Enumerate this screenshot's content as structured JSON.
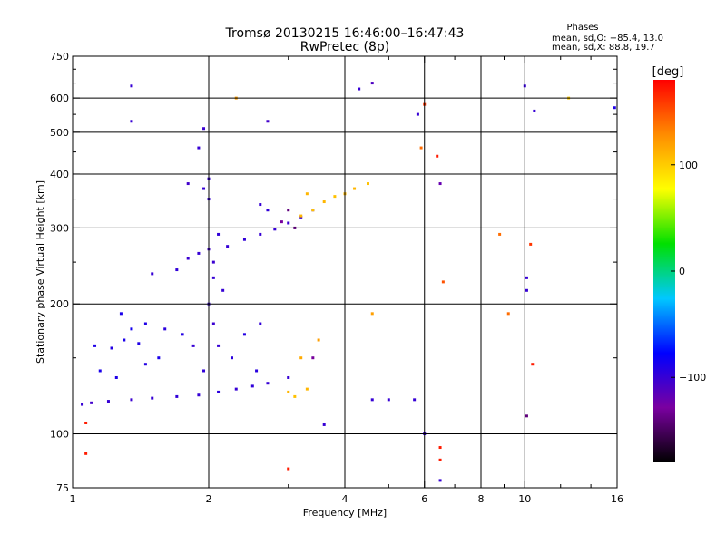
{
  "chart_data": {
    "type": "scatter",
    "title": "Tromsø 20130215 16:46:00–16:47:43",
    "subtitle": "RwPretec (8p)",
    "xlabel": "Frequency [MHz]",
    "ylabel": "Stationary phase Virtual Height [km]",
    "x_scale": "log",
    "y_scale": "log",
    "xlim": [
      1,
      16
    ],
    "ylim": [
      75,
      750
    ],
    "grid": true,
    "x_ticks": [
      1,
      2,
      4,
      6,
      8,
      10,
      16
    ],
    "x_tick_labels": [
      "1",
      "2",
      "4",
      "6",
      "8",
      "10",
      "16"
    ],
    "y_ticks": [
      75,
      100,
      200,
      300,
      400,
      500,
      600,
      750
    ],
    "y_tick_labels": [
      "75",
      "100",
      "200",
      "300",
      "400",
      "500",
      "600",
      "750"
    ],
    "x_minor_ticks": [
      3,
      5,
      7,
      9,
      12,
      14
    ],
    "y_minor_ticks": [
      150,
      250,
      350,
      450,
      550,
      650,
      700
    ],
    "stats": {
      "heading": "Phases",
      "line_o": "mean, sd,O: −85.4, 13.0",
      "line_x": "mean, sd,X:  88.8, 19.7"
    },
    "colorbar": {
      "label": "[deg]",
      "range": [
        -180,
        180
      ],
      "ticks": [
        100,
        0,
        -100
      ],
      "tick_labels": [
        "100",
        "0",
        "−100"
      ],
      "stops": [
        "#000000",
        "#7a00a0",
        "#0000ff",
        "#00c8ff",
        "#00e000",
        "#ffff00",
        "#ff8c00",
        "#ff0000"
      ]
    },
    "series": [
      {
        "points": [
          [
            1.05,
            117,
            -100
          ],
          [
            1.1,
            118,
            -105
          ],
          [
            1.2,
            119,
            -100
          ],
          [
            1.35,
            120,
            -102
          ],
          [
            1.5,
            121,
            -100
          ],
          [
            1.7,
            122,
            -98
          ],
          [
            1.9,
            123,
            -100
          ],
          [
            2.1,
            125,
            -95
          ],
          [
            2.3,
            127,
            -100
          ],
          [
            2.5,
            129,
            -97
          ],
          [
            2.7,
            131,
            -100
          ],
          [
            1.12,
            160,
            -90
          ],
          [
            1.22,
            158,
            -92
          ],
          [
            1.3,
            165,
            -88
          ],
          [
            1.4,
            162,
            -90
          ],
          [
            1.15,
            140,
            -88
          ],
          [
            1.25,
            135,
            -90
          ],
          [
            1.45,
            145,
            -92
          ],
          [
            1.55,
            150,
            -88
          ],
          [
            1.6,
            175,
            -95
          ],
          [
            1.75,
            170,
            -92
          ],
          [
            1.85,
            160,
            -100
          ],
          [
            1.95,
            140,
            -98
          ],
          [
            2.0,
            200,
            -100
          ],
          [
            2.05,
            180,
            -102
          ],
          [
            2.1,
            160,
            -100
          ],
          [
            2.15,
            215,
            -100
          ],
          [
            2.25,
            150,
            -95
          ],
          [
            2.4,
            170,
            -92
          ],
          [
            2.55,
            140,
            -94
          ],
          [
            2.6,
            180,
            -98
          ],
          [
            1.45,
            180,
            -90
          ],
          [
            1.35,
            175,
            -85
          ],
          [
            1.28,
            190,
            -88
          ],
          [
            1.5,
            235,
            -100
          ],
          [
            1.7,
            240,
            -98
          ],
          [
            1.8,
            255,
            -102
          ],
          [
            1.9,
            262,
            -100
          ],
          [
            2.0,
            268,
            -105
          ],
          [
            2.2,
            272,
            -100
          ],
          [
            2.4,
            282,
            -98
          ],
          [
            2.6,
            290,
            -100
          ],
          [
            2.8,
            298,
            -100
          ],
          [
            3.0,
            308,
            -102
          ],
          [
            3.2,
            318,
            -100
          ],
          [
            3.4,
            330,
            -110
          ],
          [
            2.05,
            230,
            -100
          ],
          [
            2.05,
            250,
            -102
          ],
          [
            2.1,
            290,
            -98
          ],
          [
            2.0,
            350,
            -100
          ],
          [
            1.8,
            380,
            -105
          ],
          [
            2.0,
            390,
            -100
          ],
          [
            1.9,
            460,
            -100
          ],
          [
            1.95,
            510,
            -102
          ],
          [
            2.6,
            340,
            -100
          ],
          [
            2.7,
            330,
            -98
          ],
          [
            2.9,
            310,
            -130
          ],
          [
            3.1,
            300,
            -140
          ],
          [
            3.0,
            330,
            -140
          ],
          [
            3.2,
            320,
            110
          ],
          [
            3.4,
            330,
            105
          ],
          [
            3.6,
            345,
            110
          ],
          [
            3.8,
            355,
            105
          ],
          [
            4.0,
            360,
            108
          ],
          [
            4.2,
            370,
            110
          ],
          [
            4.5,
            380,
            105
          ],
          [
            3.3,
            360,
            110
          ],
          [
            3.0,
            125,
            110
          ],
          [
            3.1,
            122,
            105
          ],
          [
            3.3,
            127,
            110
          ],
          [
            3.2,
            150,
            115
          ],
          [
            3.0,
            135,
            -100
          ],
          [
            3.4,
            150,
            -130
          ],
          [
            3.5,
            165,
            120
          ],
          [
            1.35,
            640,
            -100
          ],
          [
            1.35,
            530,
            -100
          ],
          [
            2.3,
            600,
            120
          ],
          [
            2.7,
            530,
            -105
          ],
          [
            4.3,
            630,
            -100
          ],
          [
            4.6,
            650,
            -110
          ],
          [
            5.8,
            550,
            -100
          ],
          [
            5.9,
            460,
            140
          ],
          [
            6.0,
            580,
            160
          ],
          [
            6.4,
            440,
            170
          ],
          [
            6.5,
            380,
            -120
          ],
          [
            6.6,
            225,
            150
          ],
          [
            6.5,
            93,
            170
          ],
          [
            6.5,
            87,
            170
          ],
          [
            6.0,
            100,
            -100
          ],
          [
            6.5,
            78,
            -100
          ],
          [
            8.8,
            290,
            140
          ],
          [
            9.2,
            190,
            140
          ],
          [
            10.0,
            640,
            -100
          ],
          [
            10.1,
            230,
            -100
          ],
          [
            10.1,
            215,
            -100
          ],
          [
            10.3,
            275,
            160
          ],
          [
            10.4,
            145,
            170
          ],
          [
            10.1,
            110,
            -140
          ],
          [
            10.5,
            560,
            -100
          ],
          [
            12.5,
            600,
            100
          ],
          [
            15.8,
            570,
            -90
          ],
          [
            5.7,
            120,
            -100
          ],
          [
            4.6,
            190,
            120
          ],
          [
            4.6,
            120,
            -100
          ],
          [
            5.0,
            120,
            -100
          ],
          [
            3.6,
            105,
            -100
          ],
          [
            3.0,
            83,
            170
          ],
          [
            1.07,
            90,
            170
          ],
          [
            1.07,
            106,
            170
          ],
          [
            1.95,
            370,
            -100
          ]
        ]
      }
    ]
  }
}
